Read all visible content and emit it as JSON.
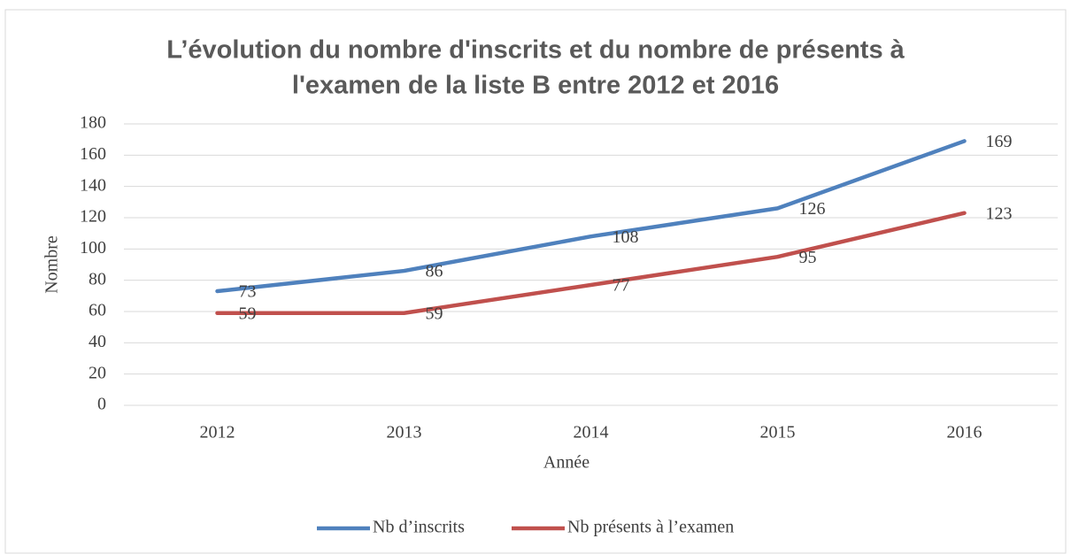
{
  "chart_data": {
    "type": "line",
    "title": [
      "L’évolution du nombre d'inscrits et du nombre de présents à",
      "l'examen de la liste B entre 2012 et 2016"
    ],
    "x_label": "Année",
    "y_label": "Nombre",
    "categories": [
      "2012",
      "2013",
      "2014",
      "2015",
      "2016"
    ],
    "series": [
      {
        "name": "Nb d’inscrits",
        "color": "#4f81bd",
        "values": [
          73,
          86,
          108,
          126,
          169
        ]
      },
      {
        "name": "Nb présents à l’examen",
        "color": "#c0504d",
        "values": [
          59,
          59,
          77,
          95,
          123
        ]
      }
    ],
    "ylim": [
      0,
      180
    ],
    "yticks": [
      0,
      20,
      40,
      60,
      80,
      100,
      120,
      140,
      160,
      180
    ],
    "grid": true,
    "legend": "bottom"
  }
}
